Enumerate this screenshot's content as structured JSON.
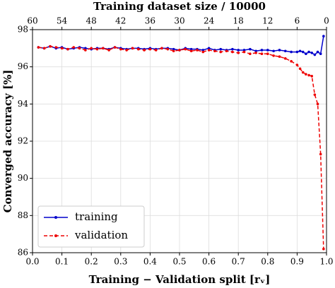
{
  "chart_data": {
    "type": "line",
    "xlabel": "Training − Validation split [rᵥ]",
    "ylabel": "Converged accuracy [%]",
    "x2label": "Training dataset size / 10000",
    "x": [
      0.02,
      0.04,
      0.06,
      0.08,
      0.1,
      0.12,
      0.14,
      0.16,
      0.18,
      0.2,
      0.22,
      0.24,
      0.26,
      0.28,
      0.3,
      0.32,
      0.34,
      0.36,
      0.38,
      0.4,
      0.42,
      0.44,
      0.46,
      0.48,
      0.5,
      0.52,
      0.54,
      0.56,
      0.58,
      0.6,
      0.62,
      0.64,
      0.66,
      0.68,
      0.7,
      0.72,
      0.74,
      0.76,
      0.78,
      0.8,
      0.82,
      0.84,
      0.86,
      0.88,
      0.9,
      0.91,
      0.92,
      0.93,
      0.94,
      0.95,
      0.96,
      0.97,
      0.98,
      0.99
    ],
    "series": [
      {
        "name": "training",
        "color": "#0000cc",
        "dash": false,
        "values": [
          97.05,
          97.0,
          97.1,
          97.0,
          97.05,
          96.95,
          97.0,
          97.05,
          97.0,
          96.95,
          97.0,
          97.0,
          96.95,
          97.05,
          97.0,
          96.95,
          97.0,
          97.0,
          96.95,
          97.0,
          96.95,
          97.0,
          97.0,
          96.95,
          96.9,
          97.0,
          96.95,
          96.95,
          96.9,
          97.0,
          96.9,
          96.95,
          96.9,
          96.95,
          96.9,
          96.9,
          96.95,
          96.85,
          96.9,
          96.9,
          96.85,
          96.9,
          96.85,
          96.8,
          96.8,
          96.85,
          96.8,
          96.7,
          96.8,
          96.75,
          96.65,
          96.8,
          96.7,
          97.65
        ]
      },
      {
        "name": "validation",
        "color": "#ee0000",
        "dash": true,
        "values": [
          97.05,
          97.0,
          97.1,
          97.05,
          97.0,
          96.95,
          97.05,
          97.0,
          96.9,
          97.0,
          96.95,
          97.0,
          96.9,
          97.05,
          96.95,
          96.9,
          97.0,
          96.95,
          96.9,
          96.95,
          96.9,
          97.0,
          96.95,
          96.85,
          96.9,
          96.95,
          96.85,
          96.9,
          96.8,
          96.9,
          96.85,
          96.8,
          96.85,
          96.8,
          96.75,
          96.8,
          96.7,
          96.75,
          96.7,
          96.7,
          96.6,
          96.55,
          96.45,
          96.3,
          96.1,
          95.9,
          95.7,
          95.6,
          95.55,
          95.5,
          94.5,
          94.0,
          91.3,
          86.2
        ]
      }
    ],
    "xlim": [
      0,
      1
    ],
    "xticks": [
      {
        "value": 0,
        "label": "0.0"
      },
      0.1,
      0.2,
      0.3,
      0.4,
      0.5,
      0.6,
      0.7,
      0.8,
      0.9,
      {
        "value": 1,
        "label": "1.0"
      }
    ],
    "x2lim": [
      60,
      0
    ],
    "x2ticks": [
      60,
      54,
      48,
      42,
      36,
      30,
      24,
      18,
      12,
      6,
      0
    ],
    "ylim": [
      86,
      98
    ],
    "yticks": [
      86,
      88,
      90,
      92,
      94,
      96,
      98
    ],
    "grid": true,
    "legend": "lower left"
  }
}
